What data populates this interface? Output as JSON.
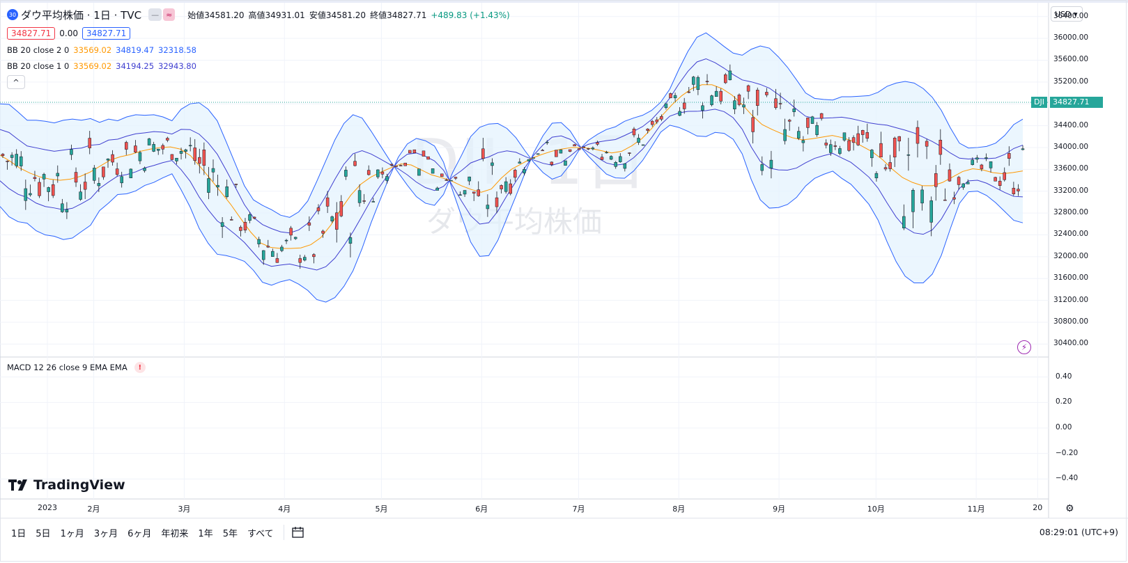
{
  "symbol": {
    "badge": "30",
    "title": "ダウ平均株価 · 1日 · TVC",
    "pill1": "—",
    "pill2": "≈",
    "open_label": "始値34581.20",
    "high_label": "高値34931.01",
    "low_label": "安値34581.20",
    "close_label": "終値34827.71",
    "change": "+489.83 (+1.43%)"
  },
  "boxes": {
    "sell": "34827.71",
    "spread": "0.00",
    "buy": "34827.71"
  },
  "indicators": [
    {
      "name": "BB 20 close 2 0",
      "basis": "33569.02",
      "upper": "34819.47",
      "lower": "32318.58"
    },
    {
      "name": "BB 20 close 1 0",
      "basis": "33569.02",
      "upper": "34194.25",
      "lower": "32943.80"
    }
  ],
  "collapse": "^",
  "macd": {
    "name": "MACD 12 26 close 9 EMA EMA",
    "warn": "!"
  },
  "currency": "USD ▾",
  "price_axis": [
    "36400.00",
    "36000.00",
    "35600.00",
    "35200.00",
    "34800.00",
    "34400.00",
    "34000.00",
    "33600.00",
    "33200.00",
    "32800.00",
    "32400.00",
    "32000.00",
    "31600.00",
    "31200.00",
    "30800.00",
    "30400.00"
  ],
  "macd_axis": [
    "0.40",
    "0.20",
    "0.00",
    "−0.20",
    "−0.40"
  ],
  "time_axis": [
    "2023",
    "2月",
    "3月",
    "4月",
    "5月",
    "6月",
    "7月",
    "8月",
    "9月",
    "10月",
    "11月",
    "20"
  ],
  "last_price": {
    "ticker": "DJI",
    "value": "34827.71"
  },
  "watermark": {
    "ticker": "DJI, 1日",
    "name": "ダウ平均株価"
  },
  "logo": "TradingView",
  "ranges": [
    "1日",
    "5日",
    "1ヶ月",
    "3ヶ月",
    "6ヶ月",
    "年初来",
    "1年",
    "5年",
    "すべて"
  ],
  "clock": "08:29:01 (UTC+9)",
  "colors": {
    "up": "#26a69a",
    "down": "#ef5350",
    "basis": "#ff9800",
    "band": "#2962ff",
    "fill": "#e3f2fd"
  },
  "chart_data": {
    "type": "candlestick",
    "series": [
      {
        "name": "BB 20 close 2 0 upper",
        "values": [
          34800,
          34790,
          34650,
          34500,
          34500,
          34480,
          34450,
          34500,
          34520,
          34500,
          34530,
          34460,
          34520,
          34490,
          34560,
          34600,
          34590,
          34600,
          34560,
          34490,
          34700,
          34800,
          34820,
          34700,
          34490,
          34100,
          33700,
          33300,
          33040,
          32940,
          32860,
          32760,
          32720,
          32820,
          33020,
          33380,
          33760,
          34140,
          34440,
          34600,
          34540,
          34300,
          34040,
          33780,
          33540,
          33310,
          33100,
          32980,
          32940,
          33140,
          33540,
          33860,
          34200,
          34370,
          34430,
          34440,
          34350,
          34180,
          33940,
          33720,
          33540,
          33420,
          33480,
          33690,
          33960,
          34130,
          34240,
          34330,
          34380,
          34480,
          34540,
          34590,
          34680,
          34830,
          35070,
          35430,
          35760,
          36020,
          36100,
          35980,
          35850,
          35730,
          35690,
          35800,
          35860,
          35820,
          35660,
          35470,
          35240,
          35000,
          34900,
          34880,
          34870,
          34930,
          34930,
          34940,
          34950,
          35010,
          35120,
          35180,
          35210,
          35180,
          35080,
          34920,
          34680,
          34360,
          34080,
          33990,
          34000,
          34020,
          34080,
          34220,
          34420,
          34520
        ]
      },
      {
        "name": "BB 20 close 2 0 basis",
        "values": [
          33860,
          33750,
          33620,
          33530,
          33460,
          33420,
          33400,
          33420,
          33470,
          33550,
          33660,
          33770,
          33830,
          33870,
          33930,
          33970,
          34000,
          34010,
          33970,
          33850,
          33640,
          33420,
          33190,
          32960,
          32700,
          32450,
          32250,
          32170,
          32150,
          32150,
          32160,
          32220,
          32350,
          32580,
          32870,
          33130,
          33330,
          33460,
          33550,
          33630,
          33700,
          33680,
          33590,
          33500,
          33450,
          33390,
          33300,
          33230,
          33180,
          33240,
          33440,
          33600,
          33700,
          33800,
          33870,
          33930,
          33970,
          34000,
          34000,
          33980,
          33940,
          33900,
          33930,
          34030,
          34160,
          34350,
          34580,
          34780,
          34950,
          35080,
          35150,
          35150,
          35080,
          34960,
          34790,
          34590,
          34420,
          34330,
          34250,
          34180,
          34140,
          34160,
          34190,
          34220,
          34180,
          34120,
          34020,
          33920,
          33780,
          33600,
          33450,
          33360,
          33300,
          33300,
          33360,
          33460,
          33560,
          33610,
          33590,
          33540,
          33520,
          33540,
          33570
        ]
      }
    ],
    "xlim": [
      "2023-01-03",
      "2023-11-18"
    ],
    "ylim": [
      30200,
      36600
    ],
    "last": 34827.71,
    "grid": true,
    "legend": "top-left"
  }
}
